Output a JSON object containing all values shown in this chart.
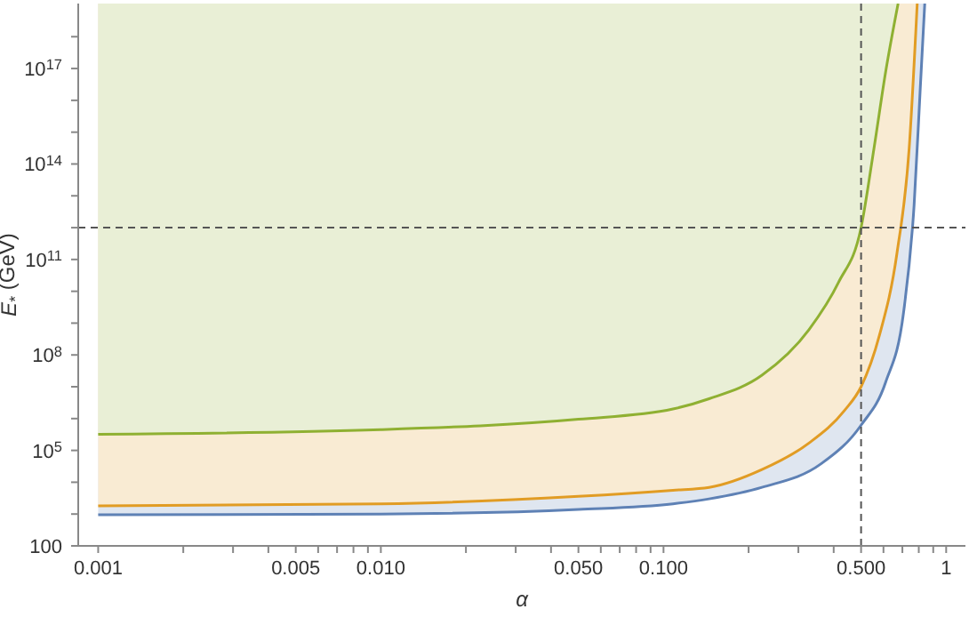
{
  "chart_data": {
    "type": "line",
    "xlabel": "α",
    "ylabel": "E$_{*}$ (GeV)",
    "log": "xy",
    "xlim": [
      0.00085,
      1.17
    ],
    "ylim": [
      100,
      1.1e+19
    ],
    "xticks": [
      0.001,
      {
        "value": 0.002,
        "label": null
      },
      {
        "value": 0.003,
        "label": null
      },
      {
        "value": 0.004,
        "label": null
      },
      0.005,
      {
        "value": 0.006,
        "label": null
      },
      {
        "value": 0.007,
        "label": null
      },
      {
        "value": 0.008,
        "label": null
      },
      {
        "value": 0.009,
        "label": null
      },
      {
        "value": 0.01,
        "label": "0.010"
      },
      {
        "value": 0.02,
        "label": null
      },
      {
        "value": 0.03,
        "label": null
      },
      {
        "value": 0.04,
        "label": null
      },
      {
        "value": 0.05,
        "label": "0.050"
      },
      {
        "value": 0.06,
        "label": null
      },
      {
        "value": 0.07,
        "label": null
      },
      {
        "value": 0.08,
        "label": null
      },
      {
        "value": 0.09,
        "label": null
      },
      {
        "value": 0.1,
        "label": "0.100"
      },
      {
        "value": 0.2,
        "label": null
      },
      {
        "value": 0.3,
        "label": null
      },
      {
        "value": 0.4,
        "label": null
      },
      {
        "value": 0.5,
        "label": "0.500"
      },
      {
        "value": 0.6,
        "label": null
      },
      {
        "value": 0.7,
        "label": null
      },
      {
        "value": 0.8,
        "label": null
      },
      {
        "value": 0.9,
        "label": null
      },
      1
    ],
    "yticks": [
      100,
      {
        "value": 1000,
        "label": null
      },
      {
        "value": 10000,
        "label": null
      },
      {
        "value": 100000.0,
        "label": "10$^{5}$"
      },
      {
        "value": 1000000.0,
        "label": null
      },
      {
        "value": 10000000.0,
        "label": null
      },
      {
        "value": 100000000.0,
        "label": "10$^{8}$"
      },
      {
        "value": 1000000000.0,
        "label": null
      },
      {
        "value": 10000000000.0,
        "label": null
      },
      {
        "value": 100000000000.0,
        "label": "10$^{11}$"
      },
      {
        "value": 1000000000000.0,
        "label": null
      },
      {
        "value": 10000000000000.0,
        "label": null
      },
      {
        "value": 100000000000000.0,
        "label": "10$^{14}$"
      },
      {
        "value": 1000000000000000.0,
        "label": null
      },
      {
        "value": 1e+16,
        "label": null
      },
      {
        "value": 1e+17,
        "label": "10$^{17}$"
      },
      {
        "value": 1e+18,
        "label": null
      }
    ],
    "grid": false,
    "legend": false,
    "ref_lines": [
      {
        "axis": "y",
        "value": 1000000000000.0,
        "color": "#555555",
        "line_style": "dashed"
      },
      {
        "axis": "x",
        "value": 0.5,
        "color": "#555555",
        "line_style": "dashed"
      }
    ],
    "series": [
      {
        "color": "#5e81b5",
        "x": [
          0.001,
          0.01,
          0.05,
          0.108,
          0.145,
          0.223,
          0.361,
          0.5,
          0.611,
          0.707,
          0.77,
          0.81,
          0.84
        ],
        "values": [
          950,
          1000,
          1400,
          2100,
          3000,
          6900,
          38000,
          620000,
          14000000.0,
          2200000000.0,
          5000000000000.0,
          2.5e+16,
          1.1e+19
        ]
      },
      {
        "color": "#e19c24",
        "x": [
          0.001,
          0.01,
          0.05,
          0.108,
          0.145,
          0.223,
          0.327,
          0.437,
          0.5,
          0.58,
          0.67,
          0.74,
          0.79
        ],
        "values": [
          1800,
          2100,
          3600,
          5600,
          6900,
          25000,
          170000,
          1800000.0,
          10000000.0,
          400000000.0,
          160000000000.0,
          320000000000000.0,
          1.1e+19
        ]
      },
      {
        "color": "#8fb032",
        "x": [
          0.001,
          0.01,
          0.05,
          0.108,
          0.145,
          0.223,
          0.327,
          0.416,
          0.5,
          0.556,
          0.611,
          0.676
        ],
        "values": [
          320000,
          450000,
          950000,
          2000000.0,
          4200000.0,
          23000000.0,
          620000000.0,
          19000000000.0,
          1000000000000.0,
          330000000000000.0,
          8e+16,
          1.1e+19
        ]
      }
    ]
  }
}
